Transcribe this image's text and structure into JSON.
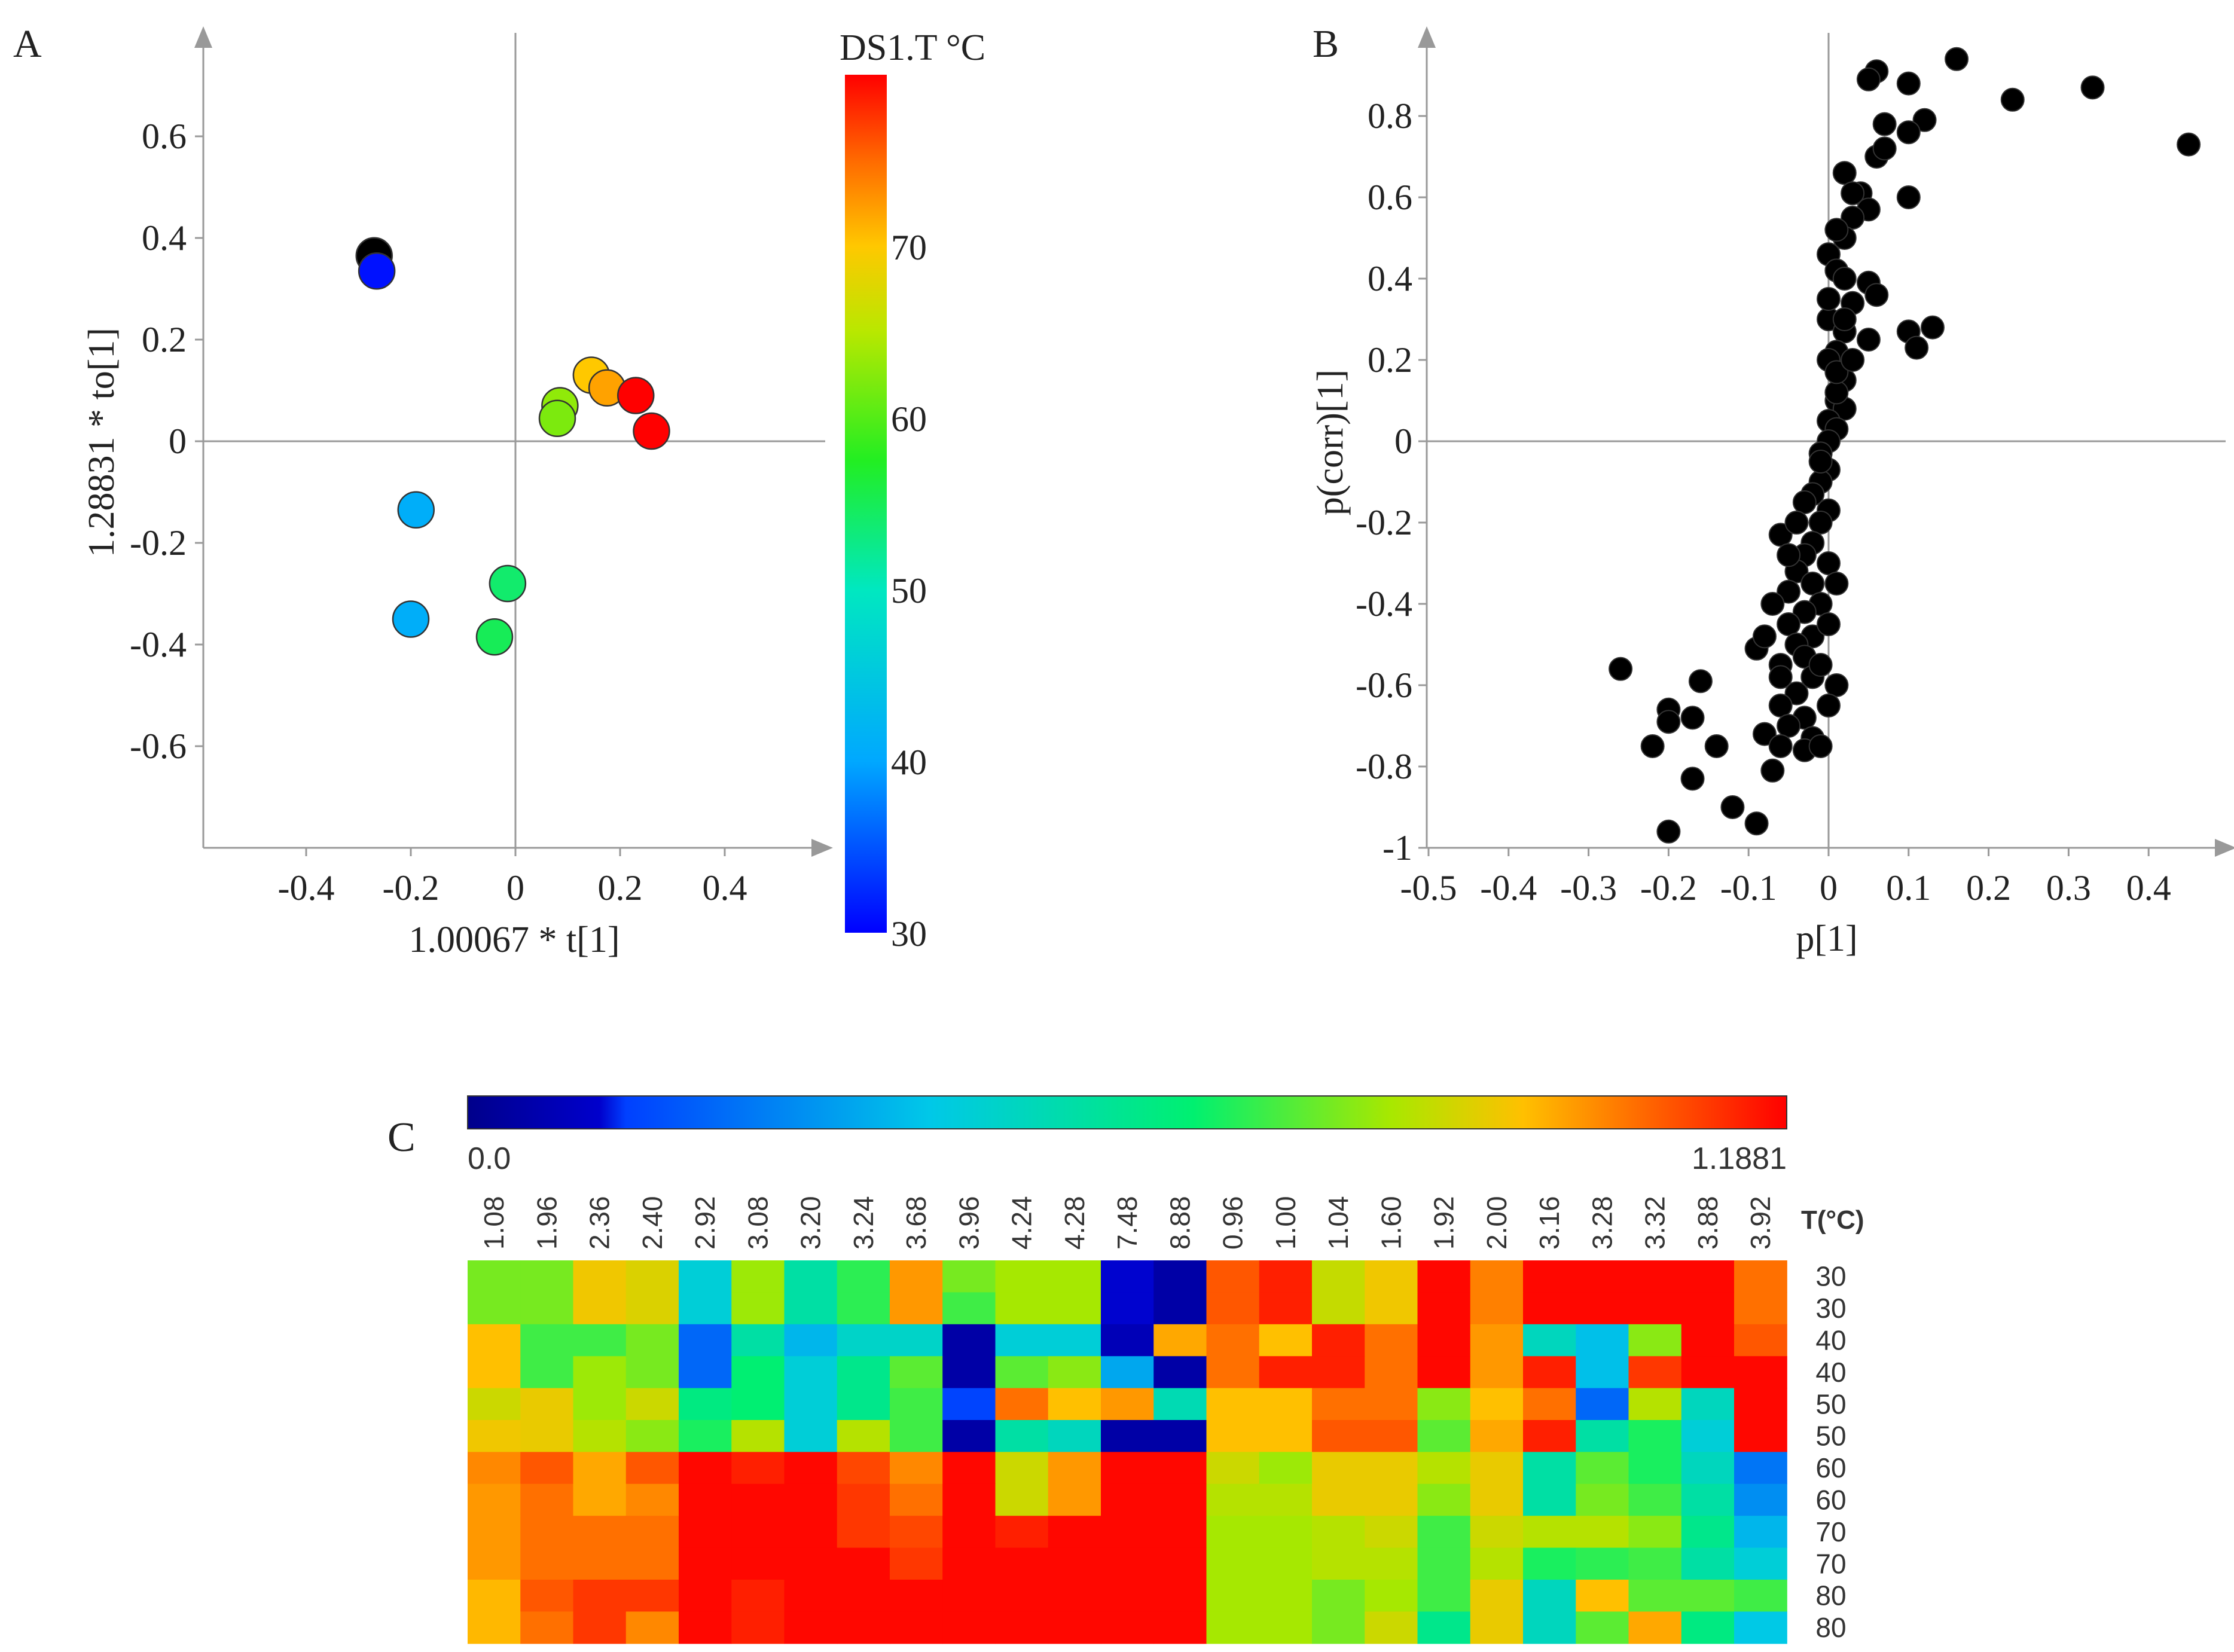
{
  "panels": {
    "a_label": "A",
    "b_label": "B",
    "c_label": "C"
  },
  "chart_data": [
    {
      "id": "A",
      "type": "scatter",
      "xlabel": "1.00067 * t[1]",
      "ylabel": "1.28831 * to[1]",
      "xlim": [
        -0.6,
        0.6
      ],
      "ylim": [
        -0.8,
        0.8
      ],
      "xticks": [
        "-0.4",
        "-0.2",
        "0",
        "0.2",
        "0.4"
      ],
      "xtick_values": [
        -0.4,
        -0.2,
        0,
        0.2,
        0.4
      ],
      "yticks": [
        "0.6",
        "0.4",
        "0.2",
        "0",
        "-0.2",
        "-0.4",
        "-0.6"
      ],
      "ytick_values": [
        0.6,
        0.4,
        0.2,
        0,
        -0.2,
        -0.4,
        -0.6
      ],
      "grid": false,
      "colorbar": {
        "title": "DS1.T °C",
        "min": 30,
        "max": 80,
        "ticks": [
          "70",
          "60",
          "50",
          "40",
          "30"
        ],
        "tick_values": [
          70,
          60,
          50,
          40,
          30
        ]
      },
      "points": [
        {
          "x": -0.27,
          "y": 0.365,
          "t": 30
        },
        {
          "x": -0.265,
          "y": 0.335,
          "t": 31
        },
        {
          "x": -0.19,
          "y": -0.135,
          "t": 41
        },
        {
          "x": -0.2,
          "y": -0.35,
          "t": 41
        },
        {
          "x": -0.015,
          "y": -0.28,
          "t": 54
        },
        {
          "x": -0.04,
          "y": -0.385,
          "t": 55
        },
        {
          "x": 0.085,
          "y": 0.07,
          "t": 63
        },
        {
          "x": 0.08,
          "y": 0.045,
          "t": 62
        },
        {
          "x": 0.145,
          "y": 0.13,
          "t": 70
        },
        {
          "x": 0.175,
          "y": 0.105,
          "t": 72
        },
        {
          "x": 0.23,
          "y": 0.09,
          "t": 80
        },
        {
          "x": 0.26,
          "y": 0.02,
          "t": 80
        }
      ]
    },
    {
      "id": "B",
      "type": "scatter",
      "xlabel": "p[1]",
      "ylabel": "p(corr)[1]",
      "xlim": [
        -0.5,
        0.5
      ],
      "ylim": [
        -1,
        1
      ],
      "xticks": [
        "-0.5",
        "-0.4",
        "-0.3",
        "-0.2",
        "-0.1",
        "0",
        "0.1",
        "0.2",
        "0.3",
        "0.4"
      ],
      "xtick_values": [
        -0.5,
        -0.4,
        -0.3,
        -0.2,
        -0.1,
        0,
        0.1,
        0.2,
        0.3,
        0.4
      ],
      "yticks": [
        "0.8",
        "0.6",
        "0.4",
        "0.2",
        "0",
        "-0.2",
        "-0.4",
        "-0.6",
        "-0.8",
        "-1"
      ],
      "ytick_values": [
        0.8,
        0.6,
        0.4,
        0.2,
        0,
        -0.2,
        -0.4,
        -0.6,
        -0.8,
        -1
      ],
      "grid": false,
      "points": [
        [
          0.16,
          0.94
        ],
        [
          0.33,
          0.87
        ],
        [
          0.23,
          0.84
        ],
        [
          0.45,
          0.73
        ],
        [
          0.06,
          0.91
        ],
        [
          0.05,
          0.89
        ],
        [
          0.1,
          0.88
        ],
        [
          0.12,
          0.79
        ],
        [
          0.07,
          0.78
        ],
        [
          0.1,
          0.76
        ],
        [
          0.06,
          0.7
        ],
        [
          0.07,
          0.72
        ],
        [
          0.02,
          0.66
        ],
        [
          0.04,
          0.61
        ],
        [
          0.03,
          0.61
        ],
        [
          0.1,
          0.6
        ],
        [
          0.05,
          0.57
        ],
        [
          0.03,
          0.55
        ],
        [
          0.02,
          0.5
        ],
        [
          0.0,
          0.46
        ],
        [
          0.01,
          0.42
        ],
        [
          0.02,
          0.4
        ],
        [
          0.05,
          0.39
        ],
        [
          0.06,
          0.36
        ],
        [
          0.03,
          0.34
        ],
        [
          0.0,
          0.3
        ],
        [
          0.13,
          0.28
        ],
        [
          0.1,
          0.27
        ],
        [
          0.02,
          0.27
        ],
        [
          0.05,
          0.25
        ],
        [
          0.11,
          0.23
        ],
        [
          0.01,
          0.22
        ],
        [
          0.0,
          0.2
        ],
        [
          0.02,
          0.15
        ],
        [
          0.01,
          0.1
        ],
        [
          0.02,
          0.08
        ],
        [
          0.0,
          0.05
        ],
        [
          0.01,
          0.03
        ],
        [
          0.0,
          0.0
        ],
        [
          -0.01,
          -0.03
        ],
        [
          0.0,
          -0.07
        ],
        [
          -0.01,
          -0.1
        ],
        [
          -0.02,
          -0.13
        ],
        [
          -0.03,
          -0.15
        ],
        [
          0.0,
          -0.17
        ],
        [
          -0.01,
          -0.2
        ],
        [
          -0.06,
          -0.23
        ],
        [
          -0.02,
          -0.25
        ],
        [
          -0.03,
          -0.28
        ],
        [
          0.0,
          -0.3
        ],
        [
          -0.04,
          -0.32
        ],
        [
          -0.02,
          -0.35
        ],
        [
          -0.05,
          -0.37
        ],
        [
          -0.01,
          -0.4
        ],
        [
          -0.03,
          -0.42
        ],
        [
          -0.05,
          -0.45
        ],
        [
          -0.02,
          -0.48
        ],
        [
          -0.04,
          -0.5
        ],
        [
          -0.09,
          -0.51
        ],
        [
          -0.03,
          -0.53
        ],
        [
          -0.06,
          -0.55
        ],
        [
          -0.26,
          -0.56
        ],
        [
          -0.02,
          -0.58
        ],
        [
          -0.16,
          -0.59
        ],
        [
          -0.04,
          -0.62
        ],
        [
          -0.06,
          -0.65
        ],
        [
          -0.03,
          -0.68
        ],
        [
          -0.2,
          -0.66
        ],
        [
          -0.2,
          -0.69
        ],
        [
          -0.17,
          -0.68
        ],
        [
          -0.05,
          -0.7
        ],
        [
          -0.08,
          -0.72
        ],
        [
          -0.02,
          -0.73
        ],
        [
          -0.03,
          -0.76
        ],
        [
          -0.22,
          -0.75
        ],
        [
          -0.14,
          -0.75
        ],
        [
          -0.06,
          -0.75
        ],
        [
          -0.07,
          -0.81
        ],
        [
          -0.17,
          -0.83
        ],
        [
          -0.12,
          -0.9
        ],
        [
          -0.09,
          -0.94
        ],
        [
          -0.2,
          -0.96
        ],
        [
          -0.01,
          -0.75
        ],
        [
          0.01,
          -0.6
        ],
        [
          -0.01,
          -0.55
        ],
        [
          0.0,
          -0.45
        ],
        [
          0.01,
          -0.35
        ],
        [
          0.01,
          0.12
        ],
        [
          0.01,
          0.17
        ],
        [
          -0.01,
          -0.05
        ],
        [
          0.03,
          0.2
        ],
        [
          0.01,
          0.52
        ],
        [
          -0.04,
          -0.2
        ],
        [
          -0.05,
          -0.28
        ],
        [
          0.0,
          0.35
        ],
        [
          -0.07,
          -0.4
        ],
        [
          -0.08,
          -0.48
        ],
        [
          -0.06,
          -0.58
        ],
        [
          0.0,
          -0.65
        ],
        [
          0.02,
          0.3
        ]
      ]
    },
    {
      "id": "C",
      "type": "heatmap",
      "colorbar": {
        "min_label": "0.0",
        "max_label": "1.1881",
        "min": 0,
        "max": 1.1881
      },
      "columns": [
        "1.08",
        "1.96",
        "2.36",
        "2.40",
        "2.92",
        "3.08",
        "3.20",
        "3.24",
        "3.68",
        "3.96",
        "4.24",
        "4.28",
        "7.48",
        "8.88",
        "0.96",
        "1.00",
        "1.04",
        "1.60",
        "1.92",
        "2.00",
        "3.16",
        "3.28",
        "3.32",
        "3.88",
        "3.92"
      ],
      "row_header": "T(°C)",
      "rows": [
        "30",
        "30",
        "40",
        "40",
        "50",
        "50",
        "60",
        "60",
        "70",
        "70",
        "80",
        "80"
      ],
      "values": [
        [
          0.78,
          0.78,
          0.93,
          0.9,
          0.45,
          0.82,
          0.55,
          0.7,
          1.0,
          0.78,
          0.83,
          0.83,
          0.12,
          0.05,
          1.08,
          1.15,
          0.87,
          0.93,
          1.18,
          1.03,
          1.18,
          1.18,
          1.18,
          1.18,
          1.05
        ],
        [
          0.78,
          0.78,
          0.93,
          0.9,
          0.45,
          0.82,
          0.55,
          0.7,
          1.0,
          0.72,
          0.83,
          0.83,
          0.12,
          0.05,
          1.08,
          1.15,
          0.87,
          0.93,
          1.18,
          1.03,
          1.18,
          1.18,
          1.18,
          1.18,
          1.05
        ],
        [
          0.95,
          0.72,
          0.72,
          0.78,
          0.22,
          0.55,
          0.38,
          0.48,
          0.48,
          0.05,
          0.45,
          0.45,
          0.08,
          0.98,
          1.05,
          0.95,
          1.15,
          1.05,
          1.18,
          1.0,
          0.5,
          0.4,
          0.8,
          1.18,
          1.08
        ],
        [
          0.95,
          0.72,
          0.82,
          0.78,
          0.22,
          0.65,
          0.45,
          0.6,
          0.75,
          0.05,
          0.75,
          0.8,
          0.35,
          0.05,
          1.05,
          1.15,
          1.15,
          1.05,
          1.18,
          1.0,
          1.15,
          0.4,
          1.12,
          1.18,
          1.18
        ],
        [
          0.88,
          0.92,
          0.82,
          0.88,
          0.62,
          0.65,
          0.45,
          0.6,
          0.72,
          0.15,
          1.05,
          0.95,
          1.0,
          0.52,
          0.95,
          0.95,
          1.05,
          1.05,
          0.8,
          0.95,
          1.05,
          0.22,
          0.85,
          0.5,
          1.18
        ],
        [
          0.93,
          0.92,
          0.85,
          0.8,
          0.68,
          0.85,
          0.45,
          0.85,
          0.72,
          0.05,
          0.55,
          0.5,
          0.05,
          0.05,
          0.95,
          0.95,
          1.08,
          1.08,
          0.75,
          0.98,
          1.15,
          0.55,
          0.68,
          0.45,
          1.18
        ],
        [
          1.02,
          1.08,
          0.98,
          1.08,
          1.18,
          1.15,
          1.18,
          1.1,
          1.02,
          1.18,
          0.88,
          1.0,
          1.18,
          1.18,
          0.88,
          0.82,
          0.92,
          0.92,
          0.85,
          0.92,
          0.55,
          0.75,
          0.68,
          0.5,
          0.25
        ],
        [
          1.0,
          1.05,
          0.98,
          1.02,
          1.18,
          1.18,
          1.18,
          1.12,
          1.05,
          1.18,
          0.88,
          1.0,
          1.18,
          1.18,
          0.85,
          0.85,
          0.92,
          0.92,
          0.8,
          0.92,
          0.55,
          0.78,
          0.72,
          0.55,
          0.3
        ],
        [
          1.0,
          1.05,
          1.05,
          1.05,
          1.18,
          1.18,
          1.18,
          1.12,
          1.1,
          1.18,
          1.15,
          1.18,
          1.18,
          1.18,
          0.83,
          0.83,
          0.85,
          0.88,
          0.72,
          0.88,
          0.85,
          0.85,
          0.8,
          0.6,
          0.38
        ],
        [
          1.0,
          1.05,
          1.05,
          1.05,
          1.18,
          1.18,
          1.18,
          1.18,
          1.12,
          1.18,
          1.18,
          1.18,
          1.18,
          1.18,
          0.83,
          0.83,
          0.85,
          0.85,
          0.72,
          0.85,
          0.68,
          0.7,
          0.72,
          0.55,
          0.45
        ],
        [
          0.96,
          1.08,
          1.12,
          1.12,
          1.18,
          1.15,
          1.18,
          1.18,
          1.18,
          1.18,
          1.18,
          1.18,
          1.18,
          1.18,
          0.83,
          0.83,
          0.78,
          0.83,
          0.72,
          0.92,
          0.5,
          0.95,
          0.75,
          0.75,
          0.72
        ],
        [
          0.96,
          1.05,
          1.12,
          1.02,
          1.18,
          1.15,
          1.18,
          1.18,
          1.18,
          1.18,
          1.18,
          1.18,
          1.18,
          1.18,
          0.83,
          0.83,
          0.78,
          0.88,
          0.6,
          0.92,
          0.5,
          0.75,
          0.98,
          0.62,
          0.42
        ]
      ]
    }
  ]
}
